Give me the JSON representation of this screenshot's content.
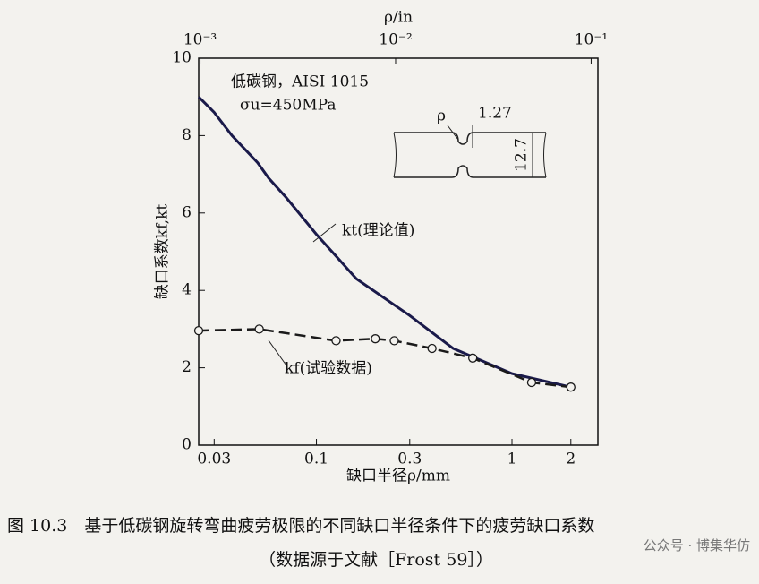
{
  "chart_data": {
    "type": "line",
    "x_label": "缺口半径ρ/mm",
    "x2_label": "ρ/in",
    "y_label": "缺口系数kf,kt",
    "xscale": "log",
    "xlim": [
      0.025,
      2.75
    ],
    "xticks": [
      0.03,
      0.1,
      0.3,
      1,
      2
    ],
    "x2lim": [
      0.000984,
      0.1083
    ],
    "x2ticks": [
      {
        "value": 0.001,
        "label": "10⁻³"
      },
      {
        "value": 0.01,
        "label": "10⁻²"
      },
      {
        "value": 0.1,
        "label": "10⁻¹"
      }
    ],
    "ylim": [
      0,
      10
    ],
    "yticks": [
      0,
      2,
      4,
      6,
      8,
      10
    ],
    "series": [
      {
        "name": "kt(理论值)",
        "color": "#1a1a4a",
        "style": "solid",
        "x": [
          0.025,
          0.03,
          0.037,
          0.05,
          0.057,
          0.07,
          0.1,
          0.16,
          0.3,
          0.5,
          1,
          2
        ],
        "values": [
          9.0,
          8.6,
          8.0,
          7.3,
          6.9,
          6.4,
          5.45,
          4.3,
          3.35,
          2.5,
          1.85,
          1.5
        ]
      },
      {
        "name": "kf(试验数据)",
        "color": "#1a1a1a",
        "style": "dashed",
        "markers": true,
        "x": [
          0.025,
          0.051,
          0.126,
          0.2,
          0.25,
          0.39,
          0.63,
          1.26,
          2
        ],
        "values": [
          2.96,
          3.0,
          2.7,
          2.75,
          2.7,
          2.5,
          2.25,
          1.62,
          1.5
        ]
      }
    ],
    "annotations": [
      "低碳钢，AISI 1015",
      "σu=450MPa"
    ],
    "inset": {
      "rho": "ρ",
      "notch": "1.27",
      "height": "12.7"
    },
    "caption": "图 10.3　基于低碳钢旋转弯曲疲劳极限的不同缺口半径条件下的疲劳缺口系数",
    "source": "（数据源于文献［Frost 59］）",
    "watermark": "公众号 · 博集华仿"
  }
}
